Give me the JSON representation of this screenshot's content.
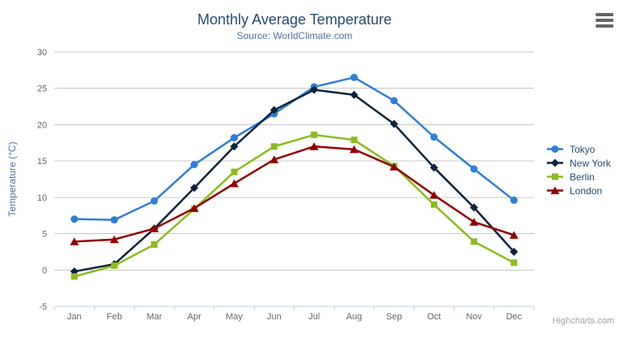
{
  "chart_data": {
    "type": "line",
    "title": "Monthly Average Temperature",
    "subtitle": "Source: WorldClimate.com",
    "categories": [
      "Jan",
      "Feb",
      "Mar",
      "Apr",
      "May",
      "Jun",
      "Jul",
      "Aug",
      "Sep",
      "Oct",
      "Nov",
      "Dec"
    ],
    "xlabel": "",
    "ylabel": "Temperature (°C)",
    "ylim": [
      -5,
      30
    ],
    "ytick_interval": 5,
    "grid": true,
    "legend_position": "right",
    "series": [
      {
        "name": "Tokyo",
        "color": "#2f7ed8",
        "marker": "circle",
        "values": [
          7.0,
          6.9,
          9.5,
          14.5,
          18.2,
          21.5,
          25.2,
          26.5,
          23.3,
          18.3,
          13.9,
          9.6
        ]
      },
      {
        "name": "New York",
        "color": "#0d233a",
        "marker": "diamond",
        "values": [
          -0.2,
          0.8,
          5.7,
          11.3,
          17.0,
          22.0,
          24.8,
          24.1,
          20.1,
          14.1,
          8.6,
          2.5
        ]
      },
      {
        "name": "Berlin",
        "color": "#8bbc21",
        "marker": "square",
        "values": [
          -0.9,
          0.6,
          3.5,
          8.4,
          13.5,
          17.0,
          18.6,
          17.9,
          14.3,
          9.0,
          3.9,
          1.0
        ]
      },
      {
        "name": "London",
        "color": "#910000",
        "marker": "triangle",
        "values": [
          3.9,
          4.2,
          5.7,
          8.5,
          11.9,
          15.2,
          17.0,
          16.6,
          14.2,
          10.3,
          6.6,
          4.8
        ]
      }
    ],
    "colors": {
      "title": "#274b6d",
      "subtitle": "#4d759e",
      "axis_labels": "#666666",
      "gridline": "#c8c8c8",
      "axis_line": "#c0d0e0"
    }
  },
  "context_menu": {
    "icon": "hamburger"
  },
  "credits": {
    "label": "Highcharts.com"
  }
}
